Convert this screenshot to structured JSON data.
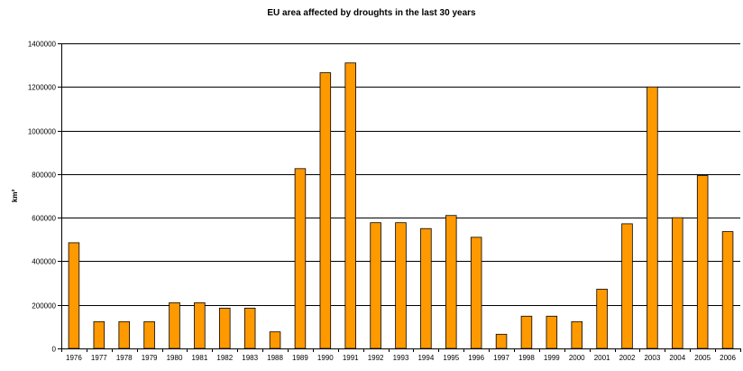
{
  "chart_data": {
    "type": "bar",
    "title": "EU area affected by droughts in the last 30 years",
    "xlabel": "",
    "ylabel": "km²",
    "ylim": [
      0,
      1400000
    ],
    "yticks": [
      0,
      200000,
      400000,
      600000,
      800000,
      1000000,
      1200000,
      1400000
    ],
    "ytick_labels": [
      "0",
      "200000",
      "400000",
      "600000",
      "800000",
      "1000000",
      "1200000",
      "1400000"
    ],
    "grid": "horizontal",
    "bar_color": "#FF9900",
    "categories": [
      "1976",
      "1977",
      "1978",
      "1979",
      "1980",
      "1981",
      "1982",
      "1983",
      "1988",
      "1989",
      "1990",
      "1991",
      "1992",
      "1993",
      "1994",
      "1995",
      "1996",
      "1997",
      "1998",
      "1999",
      "2000",
      "2001",
      "2002",
      "2003",
      "2004",
      "2005",
      "2006"
    ],
    "values": [
      485000,
      123000,
      123000,
      123000,
      210000,
      210000,
      185000,
      185000,
      76000,
      825000,
      1265000,
      1310000,
      577000,
      577000,
      550000,
      610000,
      510000,
      65000,
      148000,
      148000,
      123000,
      272000,
      572000,
      1200000,
      600000,
      793000,
      536000
    ]
  }
}
